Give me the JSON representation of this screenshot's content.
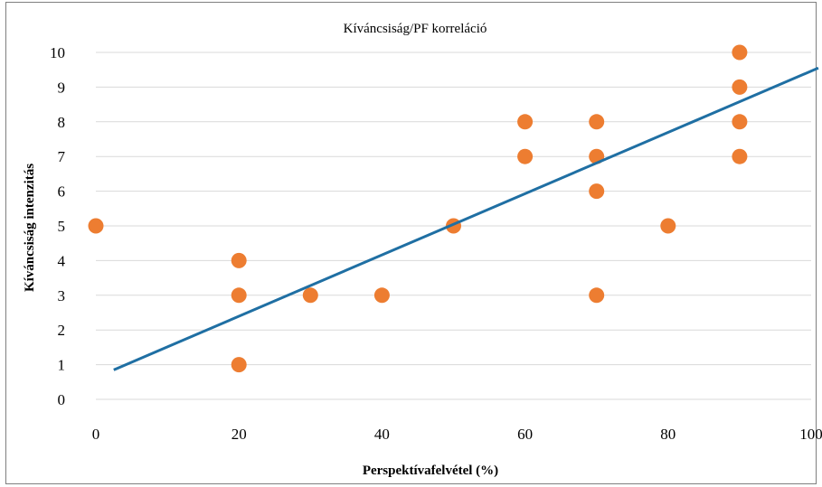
{
  "chart_data": {
    "type": "scatter",
    "title": "Kíváncsiság/PF korreláció",
    "xlabel": "Perspektívafelvétel (%)",
    "ylabel": "Kíváncsiság intenzitás",
    "xlim": [
      0,
      100
    ],
    "ylim": [
      0,
      10
    ],
    "x_ticks": [
      "0",
      "20",
      "40",
      "60",
      "80",
      "100"
    ],
    "y_ticks": [
      "0",
      "1",
      "2",
      "3",
      "4",
      "5",
      "6",
      "7",
      "8",
      "9",
      "10"
    ],
    "grid": "horizontal",
    "legend": "none",
    "series": [
      {
        "points": [
          {
            "x": 0,
            "y": 5
          },
          {
            "x": 20,
            "y": 4
          },
          {
            "x": 20,
            "y": 3
          },
          {
            "x": 20,
            "y": 1
          },
          {
            "x": 30,
            "y": 3
          },
          {
            "x": 40,
            "y": 3
          },
          {
            "x": 50,
            "y": 5
          },
          {
            "x": 60,
            "y": 8
          },
          {
            "x": 60,
            "y": 7
          },
          {
            "x": 70,
            "y": 8
          },
          {
            "x": 70,
            "y": 7
          },
          {
            "x": 70,
            "y": 6
          },
          {
            "x": 70,
            "y": 3
          },
          {
            "x": 80,
            "y": 5
          },
          {
            "x": 90,
            "y": 10
          },
          {
            "x": 90,
            "y": 9
          },
          {
            "x": 90,
            "y": 8
          },
          {
            "x": 90,
            "y": 7
          }
        ],
        "color": "#ed7d31"
      }
    ],
    "trendline": {
      "type": "linear",
      "from": {
        "x": 2.5,
        "y": 0.85
      },
      "to": {
        "x": 101,
        "y": 9.55
      },
      "color": "#1f6fa3"
    },
    "gridline_color": "#d9d9d9"
  }
}
